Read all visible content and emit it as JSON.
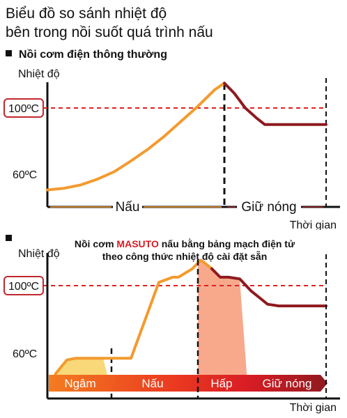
{
  "title": {
    "line1": "Biểu đồ so sánh nhiệt độ",
    "line2": "bên trong nồi suốt quá trình nấu"
  },
  "colors": {
    "orange": "#f39a2e",
    "dark_red": "#8e1a1f",
    "red": "#e02020",
    "yellow": "#f8d878",
    "steam": "#f7a080"
  },
  "chart_data": [
    {
      "type": "line",
      "section_label": "Nồi cơm điện thông thường",
      "ylabel": "Nhiệt độ",
      "xlabel": "Thời gian",
      "yticks": [
        "100ºC",
        "60ºC"
      ],
      "phases": [
        "Nấu",
        "Giữ nóng"
      ],
      "series": [
        {
          "x": [
            0,
            6,
            12,
            18,
            24,
            30,
            36,
            42,
            48,
            54,
            60,
            63.5
          ],
          "y": [
            50.5,
            51.5,
            53.5,
            57,
            61.5,
            68,
            75,
            83,
            92,
            101,
            111,
            115
          ],
          "color": "orange"
        },
        {
          "x": [
            63.5,
            67,
            71,
            75,
            78,
            82,
            90,
            100
          ],
          "y": [
            115,
            109,
            100,
            94,
            90,
            90,
            90,
            90
          ],
          "color": "dark_red"
        }
      ]
    },
    {
      "type": "line",
      "section_label": "",
      "caption": {
        "prefix": "Nồi cơm ",
        "brand": "MASUTO",
        "suffix": " nấu bằng bảng mạch điện tử",
        "line2": "theo công thức nhiệt độ cài đặt sẵn"
      },
      "ylabel": "Nhiệt độ",
      "xlabel": "Thời gian",
      "yticks": [
        "100ºC",
        "60ºC"
      ],
      "phases": [
        "Ngâm",
        "Nấu",
        "Hấp",
        "Giữ nóng"
      ],
      "series": [
        {
          "x": [
            1,
            3,
            7,
            10,
            14,
            20,
            25,
            30,
            40,
            45,
            47,
            52,
            55,
            56,
            59
          ],
          "y": [
            40,
            48,
            56,
            57,
            57,
            57,
            57,
            57,
            102,
            105,
            105,
            110,
            115,
            114,
            110
          ],
          "color": "orange"
        },
        {
          "x": [
            59,
            62,
            65,
            69,
            73,
            76,
            79,
            83,
            90,
            100
          ],
          "y": [
            110,
            105,
            105,
            104,
            97,
            93,
            89,
            88,
            88,
            88
          ],
          "color": "dark_red"
        }
      ]
    }
  ]
}
